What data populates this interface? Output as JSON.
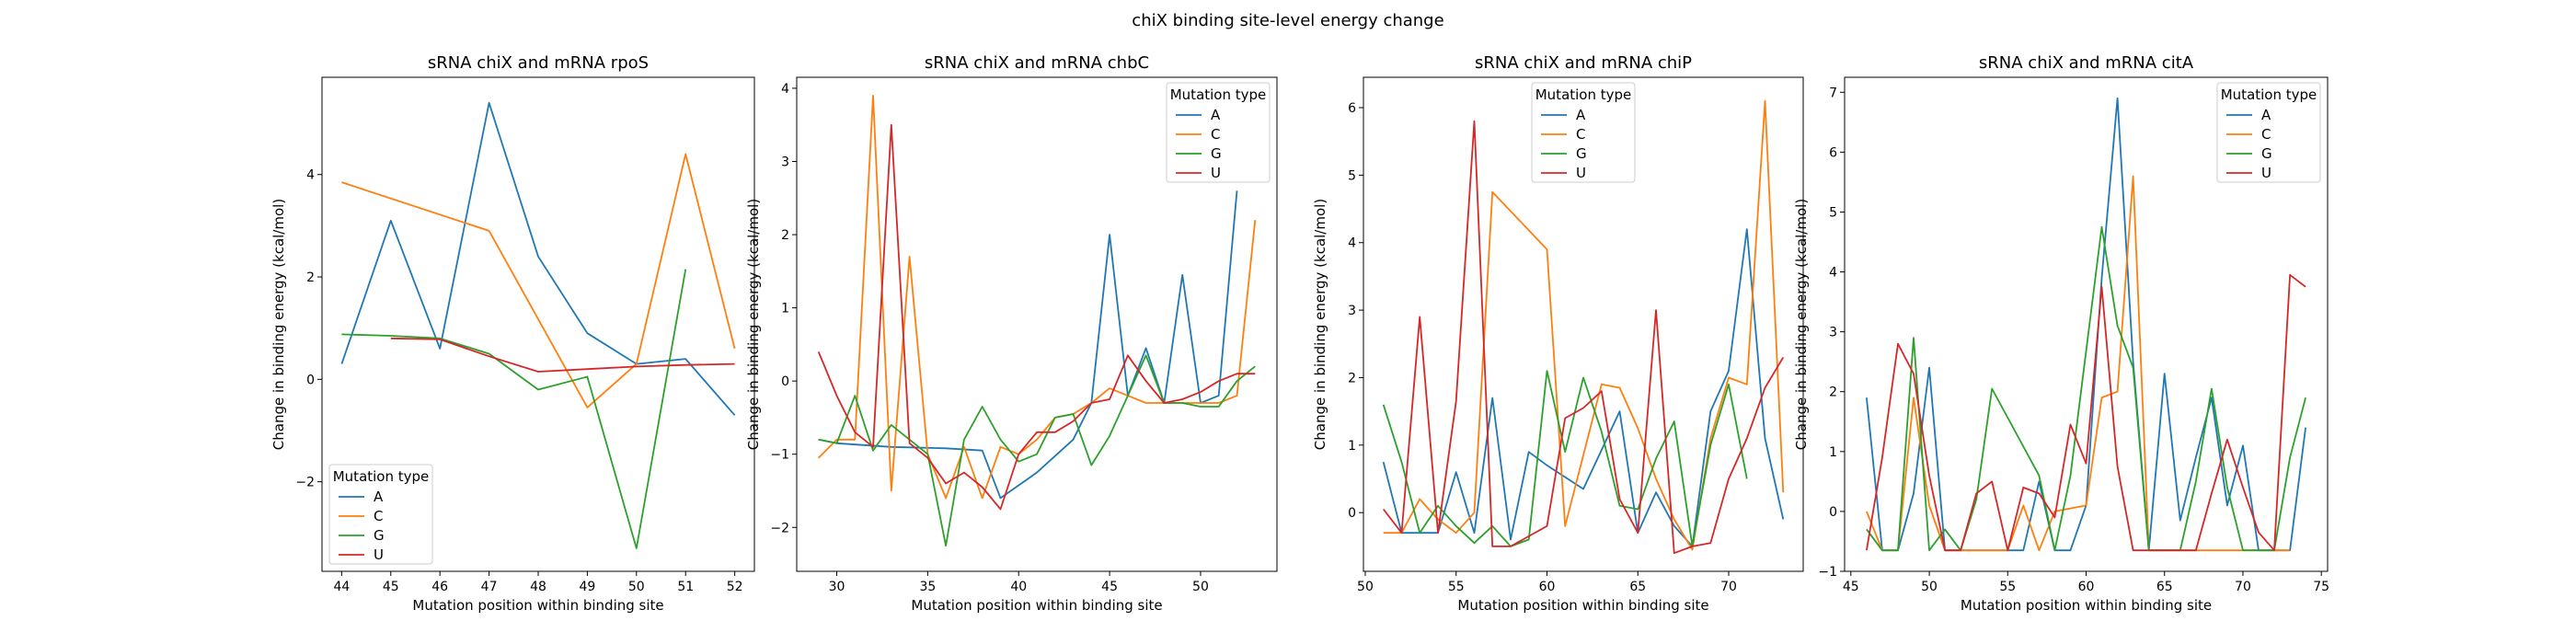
{
  "suptitle": "chiX binding site-level energy change",
  "chart_data": [
    {
      "type": "line",
      "title": "sRNA chiX and mRNA rpoS",
      "xlabel": "Mutation position within binding site",
      "ylabel": "Change in binding energy (kcal/mol)",
      "xlim": [
        43.6,
        52.4
      ],
      "ylim": [
        -3.75,
        5.9
      ],
      "xticks": [
        44,
        45,
        46,
        47,
        48,
        49,
        50,
        51,
        52
      ],
      "yticks": [
        -2,
        0,
        2,
        4
      ],
      "legend": {
        "title": "Mutation type",
        "location": "lower-left"
      },
      "series": [
        {
          "name": "A",
          "color": "#1f77b4",
          "x": [
            44,
            45,
            46,
            47,
            48,
            49,
            50,
            51,
            52
          ],
          "y": [
            0.3,
            3.1,
            0.6,
            5.4,
            2.4,
            0.9,
            0.3,
            0.4,
            -0.7
          ]
        },
        {
          "name": "C",
          "color": "#ff7f0e",
          "x": [
            44,
            47,
            49,
            50,
            51,
            52
          ],
          "y": [
            3.85,
            2.9,
            -0.55,
            0.3,
            4.4,
            0.6
          ]
        },
        {
          "name": "G",
          "color": "#2ca02c",
          "x": [
            44,
            45,
            46,
            47,
            48,
            49,
            50,
            51
          ],
          "y": [
            0.88,
            0.85,
            0.8,
            0.5,
            -0.2,
            0.05,
            -3.3,
            2.15
          ]
        },
        {
          "name": "U",
          "color": "#d62728",
          "x": [
            45,
            46,
            47,
            48,
            49,
            50,
            51,
            52
          ],
          "y": [
            0.8,
            0.78,
            0.45,
            0.15,
            0.2,
            0.25,
            0.28,
            0.3
          ]
        }
      ]
    },
    {
      "type": "line",
      "title": "sRNA chiX and mRNA chbC",
      "xlabel": "Mutation position within binding site",
      "ylabel": "Change in binding energy (kcal/mol)",
      "xlim": [
        27.8,
        54.2
      ],
      "ylim": [
        -2.6,
        4.15
      ],
      "xticks": [
        30,
        35,
        40,
        45,
        50
      ],
      "yticks": [
        -2,
        -1,
        0,
        1,
        2,
        3,
        4
      ],
      "legend": {
        "title": "Mutation type",
        "location": "upper-right"
      },
      "series": [
        {
          "name": "A",
          "color": "#1f77b4",
          "x": [
            29,
            30,
            33,
            36,
            38,
            39,
            41,
            43,
            44,
            45,
            46,
            47,
            48,
            49,
            50,
            51,
            52
          ],
          "y": [
            -0.8,
            -0.85,
            -0.9,
            -0.92,
            -0.95,
            -1.6,
            -1.25,
            -0.8,
            -0.3,
            2.0,
            -0.2,
            0.45,
            -0.3,
            1.45,
            -0.3,
            -0.2,
            2.6
          ]
        },
        {
          "name": "C",
          "color": "#ff7f0e",
          "x": [
            29,
            30,
            31,
            32,
            33,
            34,
            35,
            36,
            37,
            38,
            39,
            40,
            41,
            42,
            43,
            44,
            45,
            46,
            47,
            48,
            49,
            50,
            51,
            52,
            53
          ],
          "y": [
            -1.05,
            -0.8,
            -0.8,
            3.9,
            -1.5,
            1.7,
            -1.0,
            -1.6,
            -0.9,
            -1.6,
            -0.9,
            -1.0,
            -0.8,
            -0.5,
            -0.45,
            -0.3,
            -0.1,
            -0.2,
            -0.3,
            -0.3,
            -0.3,
            -0.3,
            -0.3,
            -0.2,
            2.2
          ]
        },
        {
          "name": "G",
          "color": "#2ca02c",
          "x": [
            29,
            30,
            31,
            32,
            33,
            34,
            35,
            36,
            37,
            38,
            39,
            40,
            41,
            42,
            43,
            44,
            45,
            46,
            47,
            48,
            49,
            50,
            51,
            52,
            53
          ],
          "y": [
            -0.8,
            -0.85,
            -0.2,
            -0.95,
            -0.6,
            -0.8,
            -1.0,
            -2.25,
            -0.8,
            -0.35,
            -0.8,
            -1.1,
            -1.0,
            -0.5,
            -0.45,
            -1.15,
            -0.75,
            -0.2,
            0.35,
            -0.3,
            -0.3,
            -0.35,
            -0.35,
            0.0,
            0.2
          ]
        },
        {
          "name": "U",
          "color": "#d62728",
          "x": [
            29,
            30,
            31,
            32,
            33,
            34,
            35,
            36,
            37,
            38,
            39,
            40,
            41,
            42,
            43,
            44,
            45,
            46,
            47,
            48,
            49,
            50,
            51,
            52,
            53
          ],
          "y": [
            0.4,
            -0.2,
            -0.7,
            -0.9,
            3.5,
            -0.85,
            -1.05,
            -1.4,
            -1.25,
            -1.45,
            -1.75,
            -1.0,
            -0.7,
            -0.7,
            -0.55,
            -0.3,
            -0.25,
            0.35,
            0.0,
            -0.3,
            -0.25,
            -0.15,
            0.0,
            0.1,
            0.1
          ]
        }
      ]
    },
    {
      "type": "line",
      "title": "sRNA chiX and mRNA chiP",
      "xlabel": "Mutation position within binding site",
      "ylabel": "Change in binding energy (kcal/mol)",
      "xlim": [
        49.9,
        74.1
      ],
      "ylim": [
        -0.87,
        6.45
      ],
      "xticks": [
        50,
        55,
        60,
        65,
        70
      ],
      "yticks": [
        0,
        1,
        2,
        3,
        4,
        5,
        6
      ],
      "legend": {
        "title": "Mutation type",
        "location": "upper-center"
      },
      "series": [
        {
          "name": "A",
          "color": "#1f77b4",
          "x": [
            51,
            52,
            53,
            54,
            55,
            56,
            57,
            58,
            59,
            60,
            62,
            64,
            65,
            66,
            67,
            68,
            69,
            70,
            71,
            72,
            73
          ],
          "y": [
            0.75,
            -0.3,
            -0.3,
            -0.3,
            0.6,
            -0.3,
            1.7,
            -0.4,
            0.9,
            0.7,
            0.35,
            1.5,
            -0.3,
            0.3,
            -0.2,
            -0.5,
            1.5,
            2.1,
            4.2,
            1.1,
            -0.1
          ]
        },
        {
          "name": "C",
          "color": "#ff7f0e",
          "x": [
            51,
            52,
            53,
            54,
            55,
            56,
            57,
            60,
            61,
            62,
            63,
            64,
            65,
            66,
            67,
            68,
            69,
            70,
            71,
            72,
            73
          ],
          "y": [
            -0.3,
            -0.3,
            0.2,
            -0.1,
            -0.3,
            0.0,
            4.75,
            3.9,
            -0.2,
            0.85,
            1.9,
            1.85,
            1.25,
            0.5,
            -0.1,
            -0.55,
            1.1,
            2.0,
            1.9,
            6.1,
            0.3
          ]
        },
        {
          "name": "G",
          "color": "#2ca02c",
          "x": [
            51,
            52,
            53,
            54,
            55,
            56,
            57,
            58,
            59,
            60,
            61,
            62,
            63,
            64,
            65,
            66,
            67,
            68,
            69,
            70,
            71
          ],
          "y": [
            1.6,
            0.75,
            -0.3,
            0.1,
            -0.2,
            -0.45,
            -0.2,
            -0.5,
            -0.4,
            2.1,
            0.9,
            2.0,
            1.2,
            0.1,
            0.05,
            0.8,
            1.35,
            -0.5,
            1.0,
            1.9,
            0.5
          ]
        },
        {
          "name": "U",
          "color": "#d62728",
          "x": [
            51,
            52,
            53,
            54,
            55,
            56,
            57,
            58,
            59,
            60,
            61,
            62,
            63,
            64,
            65,
            66,
            67,
            68,
            69,
            70,
            71,
            72,
            73
          ],
          "y": [
            0.05,
            -0.3,
            2.9,
            -0.3,
            1.65,
            5.8,
            -0.5,
            -0.5,
            -0.35,
            -0.2,
            1.4,
            1.55,
            1.8,
            0.2,
            -0.3,
            3.0,
            -0.6,
            -0.5,
            -0.45,
            0.5,
            1.1,
            1.85,
            2.3
          ]
        }
      ]
    },
    {
      "type": "line",
      "title": "sRNA chiX and mRNA citA",
      "xlabel": "Mutation position within binding site",
      "ylabel": "Change in binding energy (kcal/mol)",
      "xlim": [
        44.6,
        75.4
      ],
      "ylim": [
        -1.0,
        7.25
      ],
      "xticks": [
        45,
        50,
        55,
        60,
        65,
        70,
        75
      ],
      "yticks": [
        -1,
        0,
        1,
        2,
        3,
        4,
        5,
        6,
        7
      ],
      "legend": {
        "title": "Mutation type",
        "location": "upper-right"
      },
      "series": [
        {
          "name": "A",
          "color": "#1f77b4",
          "x": [
            46,
            47,
            48,
            49,
            50,
            51,
            52,
            53,
            54,
            55,
            56,
            57,
            58,
            59,
            60,
            61,
            62,
            63,
            64,
            65,
            66,
            67,
            68,
            69,
            70,
            71,
            72,
            73,
            74
          ],
          "y": [
            1.9,
            -0.65,
            -0.65,
            0.3,
            2.4,
            -0.65,
            -0.65,
            -0.65,
            -0.65,
            -0.65,
            -0.65,
            0.5,
            -0.65,
            -0.65,
            0.1,
            3.9,
            6.9,
            2.5,
            -0.65,
            2.3,
            -0.15,
            0.9,
            1.9,
            0.1,
            1.1,
            -0.65,
            -0.65,
            -0.65,
            1.4
          ]
        },
        {
          "name": "C",
          "color": "#ff7f0e",
          "x": [
            46,
            47,
            48,
            49,
            50,
            51,
            52,
            53,
            54,
            55,
            56,
            57,
            58,
            60,
            61,
            62,
            63,
            64,
            65,
            66,
            67,
            68,
            69,
            70,
            71,
            72,
            73
          ],
          "y": [
            0.0,
            -0.65,
            -0.65,
            1.9,
            0.1,
            -0.65,
            -0.65,
            -0.65,
            -0.65,
            -0.65,
            0.1,
            -0.65,
            0.0,
            0.1,
            1.9,
            2.0,
            5.6,
            -0.65,
            -0.65,
            -0.65,
            -0.65,
            -0.65,
            -0.65,
            -0.65,
            -0.65,
            -0.65,
            -0.65
          ]
        },
        {
          "name": "G",
          "color": "#2ca02c",
          "x": [
            46,
            47,
            48,
            49,
            50,
            51,
            52,
            53,
            54,
            57,
            58,
            59,
            61,
            62,
            63,
            64,
            65,
            66,
            67,
            68,
            69,
            70,
            71,
            72,
            73,
            74
          ],
          "y": [
            -0.3,
            -0.65,
            -0.65,
            2.9,
            -0.65,
            -0.3,
            -0.65,
            0.2,
            2.05,
            0.6,
            -0.65,
            0.6,
            4.75,
            3.1,
            2.4,
            -0.65,
            -0.65,
            -0.65,
            0.5,
            2.05,
            0.4,
            -0.65,
            -0.65,
            -0.65,
            0.9,
            1.9
          ]
        },
        {
          "name": "U",
          "color": "#d62728",
          "x": [
            46,
            47,
            48,
            49,
            50,
            51,
            52,
            53,
            54,
            55,
            56,
            57,
            58,
            59,
            60,
            61,
            62,
            63,
            64,
            65,
            66,
            67,
            68,
            69,
            70,
            71,
            72,
            73,
            74
          ],
          "y": [
            -0.65,
            0.9,
            2.8,
            2.3,
            0.6,
            -0.65,
            -0.65,
            0.3,
            0.5,
            -0.65,
            0.4,
            0.3,
            -0.1,
            1.45,
            0.8,
            3.75,
            0.75,
            -0.65,
            -0.65,
            -0.65,
            -0.65,
            -0.65,
            0.3,
            1.2,
            0.4,
            -0.35,
            -0.65,
            3.95,
            3.75
          ]
        }
      ]
    }
  ]
}
